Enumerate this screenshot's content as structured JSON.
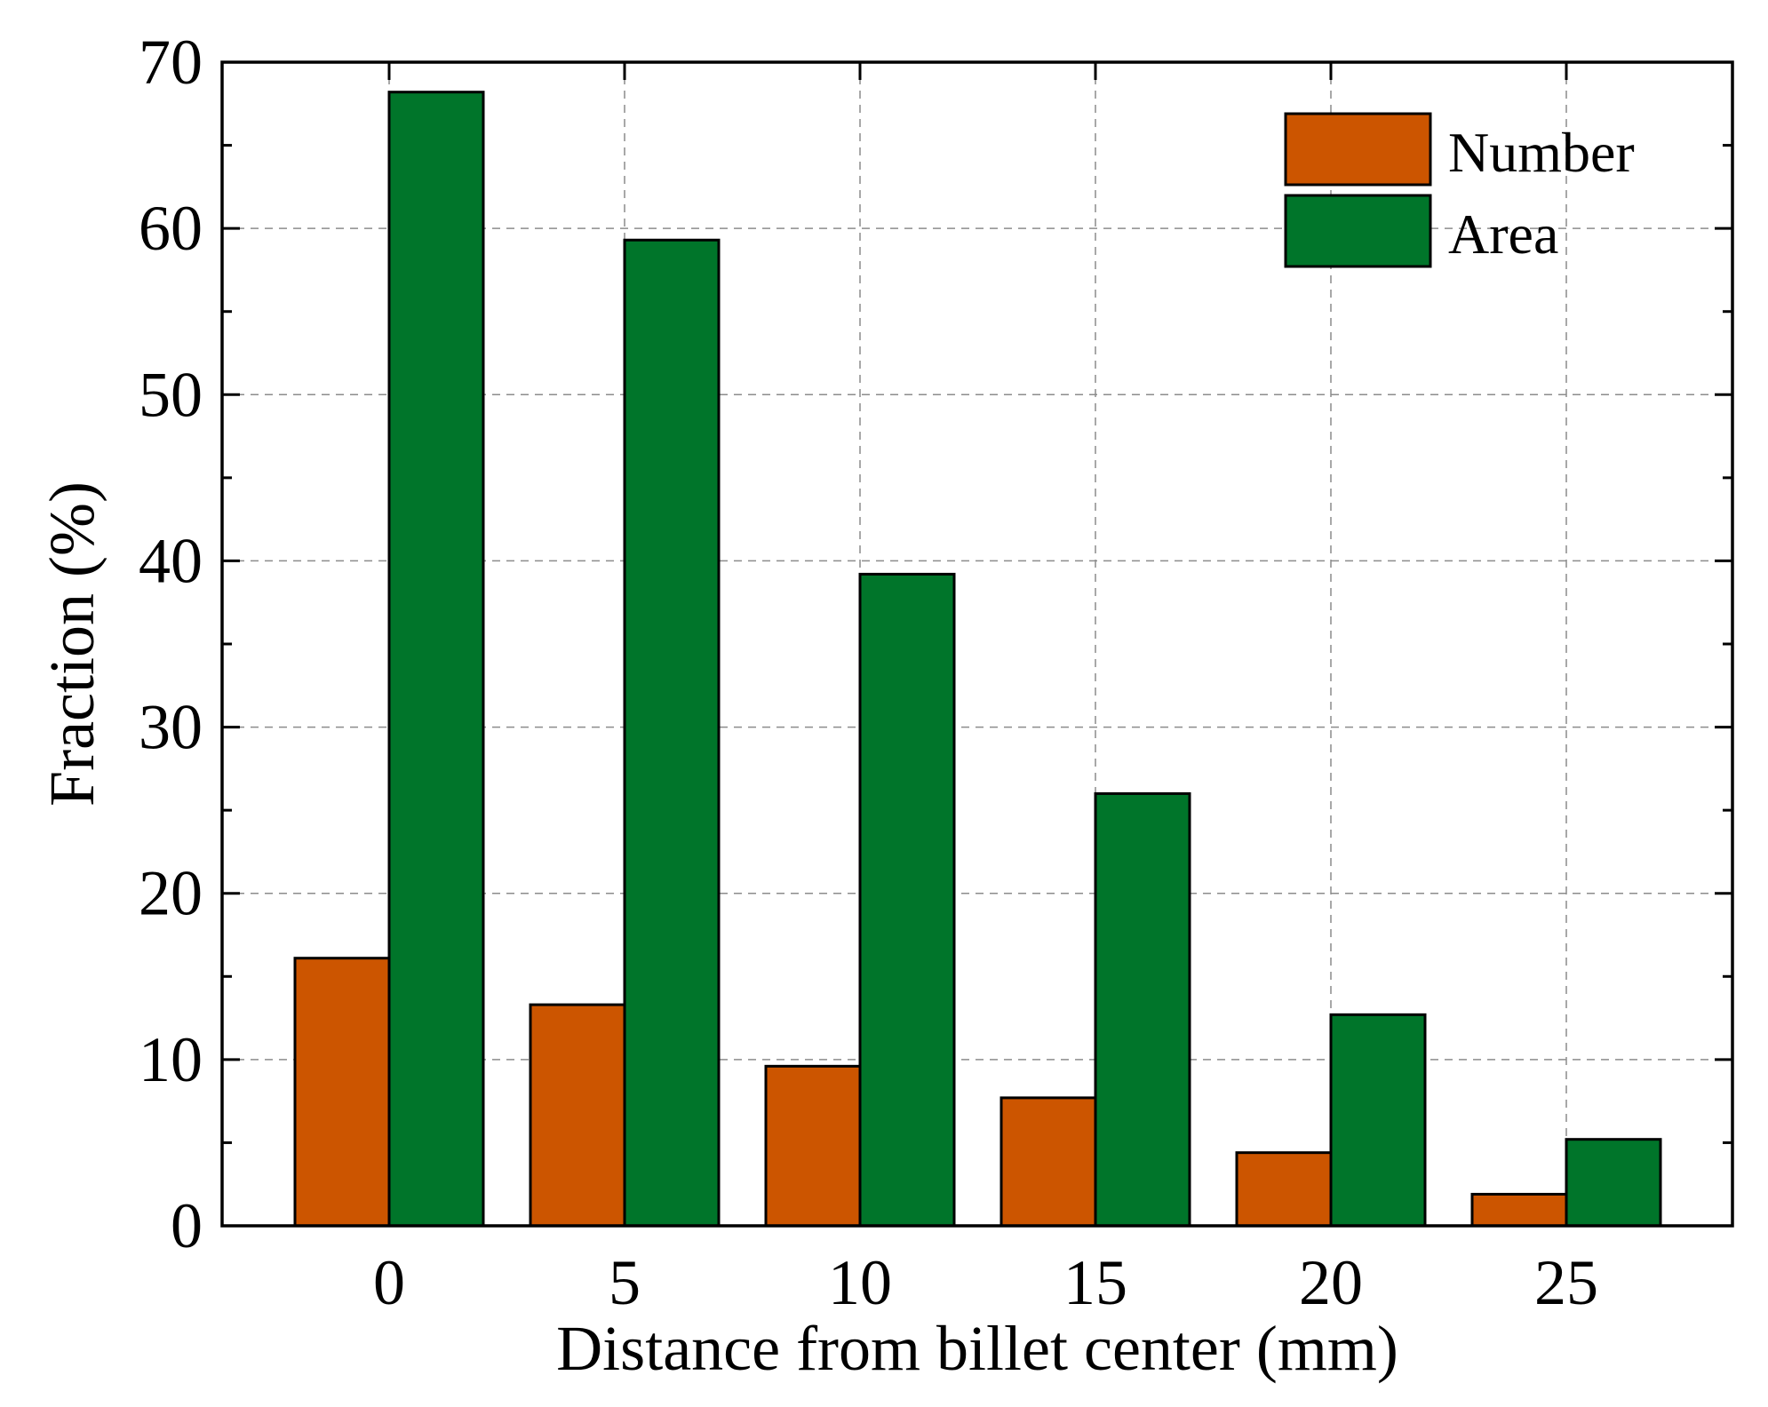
{
  "chart_data": {
    "type": "bar",
    "title": "",
    "xlabel": "Distance from billet center (mm)",
    "ylabel": "Fraction (%)",
    "categories": [
      "0",
      "5",
      "10",
      "15",
      "20",
      "25"
    ],
    "series": [
      {
        "name": "Number",
        "color": "#cc5500",
        "values": [
          16.1,
          13.3,
          9.6,
          7.7,
          4.4,
          1.9
        ]
      },
      {
        "name": "Area",
        "color": "#00752a",
        "values": [
          68.2,
          59.3,
          39.2,
          26.0,
          12.7,
          5.2
        ]
      }
    ],
    "ylim": [
      0,
      70
    ],
    "yticks": [
      "0",
      "10",
      "20",
      "30",
      "40",
      "50",
      "60",
      "70"
    ],
    "grid": true,
    "legend_position": "top-right"
  }
}
